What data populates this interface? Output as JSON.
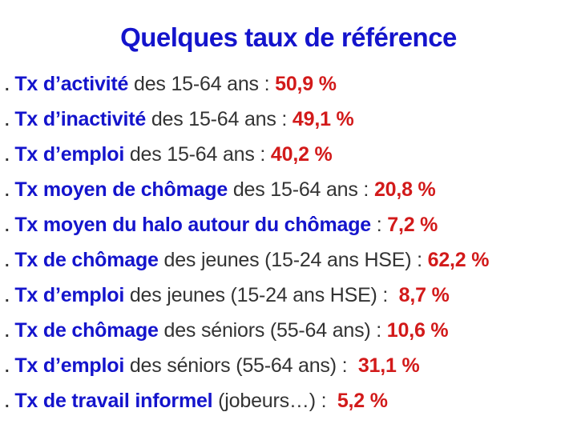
{
  "slide": {
    "title": "Quelques taux de référence"
  },
  "colors": {
    "title_blue": "#1414cc",
    "label_blue": "#1414cc",
    "body_text": "#333333",
    "value_red": "#d21a1a",
    "background": "#ffffff"
  },
  "items": [
    {
      "bullet": ".",
      "label": "Tx d’activité",
      "text": " des 15-64 ans : ",
      "value": "50,9 %"
    },
    {
      "bullet": ".",
      "label": "Tx d’inactivité",
      "text": " des 15-64 ans : ",
      "value": "49,1 %"
    },
    {
      "bullet": ".",
      "label": "Tx d’emploi",
      "text": " des 15-64 ans : ",
      "value": "40,2 %"
    },
    {
      "bullet": ".",
      "label": "Tx moyen de chômage",
      "text": " des 15-64 ans : ",
      "value": "20,8 %"
    },
    {
      "bullet": ".",
      "label": "Tx moyen du halo autour du chômage",
      "text": " : ",
      "value": "7,2 %"
    },
    {
      "bullet": ".",
      "label": "Tx de chômage",
      "text": " des jeunes (15-24 ans HSE) : ",
      "value": "62,2 %"
    },
    {
      "bullet": ".",
      "label": "Tx d’emploi",
      "text": " des jeunes (15-24 ans HSE) :  ",
      "value": "8,7 %"
    },
    {
      "bullet": ".",
      "label": "Tx de chômage",
      "text": " des séniors (55-64 ans) : ",
      "value": "10,6 %"
    },
    {
      "bullet": ".",
      "label": "Tx d’emploi",
      "text": " des séniors (55-64 ans) :  ",
      "value": "31,1 %"
    },
    {
      "bullet": ".",
      "label": "Tx de travail informel",
      "text": " (jobeurs…) :  ",
      "value": "5,2 %"
    }
  ]
}
